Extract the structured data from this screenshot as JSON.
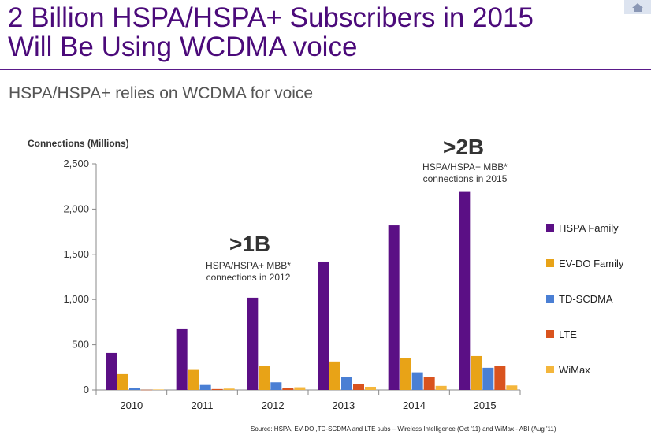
{
  "slide": {
    "title_line1": "2 Billion HSPA/HSPA+ Subscribers in 2015",
    "title_line2": "Will Be Using WCDMA voice",
    "subtitle": "HSPA/HSPA+ relies on WCDMA for voice",
    "source": "Source: HSPA, EV-DO ,TD-SCDMA  and LTE subs – Wireless Intelligence (Oct '11) and WiMax -  ABI (Aug '11)",
    "corner_icon": "home-icon"
  },
  "annotations": {
    "a2012_big": ">1B",
    "a2012_line1": "HSPA/HSPA+  MBB*",
    "a2012_line2": "connections in 2012",
    "a2015_big": ">2B",
    "a2015_line1": "HSPA/HSPA+ MBB*",
    "a2015_line2": "connections in 2015"
  },
  "chart_data": {
    "type": "bar",
    "ylabel": "Connections (Millions)",
    "xlabel": "",
    "ylim": [
      0,
      2500
    ],
    "yticks": [
      0,
      500,
      1000,
      1500,
      2000,
      2500
    ],
    "ytick_labels": [
      "0",
      "500",
      "1,000",
      "1,500",
      "2,000",
      "2,500"
    ],
    "categories": [
      "2010",
      "2011",
      "2012",
      "2013",
      "2014",
      "2015"
    ],
    "legend_position": "right",
    "grid": false,
    "series": [
      {
        "name": "HSPA Family",
        "color": "#5b0f85",
        "values": [
          410,
          680,
          1020,
          1420,
          1820,
          2190
        ]
      },
      {
        "name": "EV-DO Family",
        "color": "#e8a317",
        "values": [
          175,
          230,
          270,
          315,
          350,
          375
        ]
      },
      {
        "name": "TD-SCDMA",
        "color": "#4a7fd4",
        "values": [
          20,
          55,
          85,
          140,
          195,
          245
        ]
      },
      {
        "name": "LTE",
        "color": "#d9531e",
        "values": [
          2,
          10,
          25,
          65,
          140,
          265
        ]
      },
      {
        "name": "WiMax",
        "color": "#f4b63c",
        "values": [
          5,
          15,
          30,
          35,
          45,
          50
        ]
      }
    ]
  }
}
